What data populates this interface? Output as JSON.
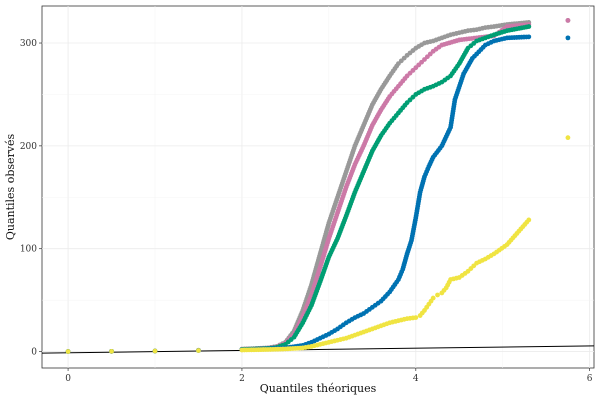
{
  "chart_data": {
    "type": "scatter",
    "title": "",
    "xlabel": "Quantiles théoriques",
    "ylabel": "Quantiles observés",
    "xlim": [
      -0.3,
      6.05
    ],
    "ylim": [
      -16,
      336
    ],
    "xticks": [
      0,
      2,
      4,
      6
    ],
    "yticks": [
      0,
      100,
      200,
      300
    ],
    "grid": true,
    "legend": "none",
    "reference_line": {
      "x": [
        -0.3,
        6.05
      ],
      "y": [
        -1.5,
        5.5
      ],
      "color": "#000000"
    },
    "series": [
      {
        "name": "gris",
        "color": "#999999",
        "points": [
          [
            0,
            0
          ],
          [
            0.5,
            0.2
          ],
          [
            1,
            0.5
          ],
          [
            1.5,
            1.2
          ],
          [
            2,
            2.3
          ],
          [
            2.3,
            3.5
          ],
          [
            2.4,
            5
          ],
          [
            2.5,
            9
          ],
          [
            2.6,
            20
          ],
          [
            2.7,
            40
          ],
          [
            2.8,
            65
          ],
          [
            2.9,
            95
          ],
          [
            3.0,
            125
          ],
          [
            3.1,
            150
          ],
          [
            3.2,
            175
          ],
          [
            3.3,
            200
          ],
          [
            3.4,
            220
          ],
          [
            3.5,
            240
          ],
          [
            3.6,
            255
          ],
          [
            3.7,
            268
          ],
          [
            3.8,
            280
          ],
          [
            3.9,
            288
          ],
          [
            4.0,
            295
          ],
          [
            4.1,
            300
          ],
          [
            4.2,
            302
          ],
          [
            4.3,
            305
          ],
          [
            4.4,
            308
          ],
          [
            4.5,
            310
          ],
          [
            4.6,
            312
          ],
          [
            4.7,
            313
          ],
          [
            4.8,
            315
          ],
          [
            4.9,
            316
          ],
          [
            5.05,
            318
          ],
          [
            5.3,
            320
          ],
          [
            5.75,
            322
          ]
        ]
      },
      {
        "name": "rose",
        "color": "#cc79a7",
        "points": [
          [
            0,
            0
          ],
          [
            0.5,
            0.2
          ],
          [
            1,
            0.5
          ],
          [
            1.5,
            1.2
          ],
          [
            2,
            2.2
          ],
          [
            2.3,
            3.3
          ],
          [
            2.4,
            4.5
          ],
          [
            2.5,
            8
          ],
          [
            2.6,
            17
          ],
          [
            2.7,
            34
          ],
          [
            2.8,
            55
          ],
          [
            2.9,
            82
          ],
          [
            3.0,
            110
          ],
          [
            3.1,
            135
          ],
          [
            3.2,
            160
          ],
          [
            3.3,
            182
          ],
          [
            3.4,
            200
          ],
          [
            3.5,
            220
          ],
          [
            3.6,
            235
          ],
          [
            3.7,
            248
          ],
          [
            3.8,
            258
          ],
          [
            3.9,
            268
          ],
          [
            4.0,
            276
          ],
          [
            4.1,
            284
          ],
          [
            4.2,
            292
          ],
          [
            4.3,
            298
          ],
          [
            4.5,
            303
          ],
          [
            4.7,
            305
          ],
          [
            4.9,
            307
          ],
          [
            5.05,
            316
          ],
          [
            5.3,
            318
          ],
          [
            5.75,
            322
          ]
        ]
      },
      {
        "name": "vert",
        "color": "#009e73",
        "points": [
          [
            0,
            0
          ],
          [
            0.5,
            0.2
          ],
          [
            1,
            0.5
          ],
          [
            1.5,
            1.1
          ],
          [
            2,
            2.1
          ],
          [
            2.3,
            3
          ],
          [
            2.4,
            4
          ],
          [
            2.5,
            7
          ],
          [
            2.6,
            14
          ],
          [
            2.7,
            28
          ],
          [
            2.8,
            45
          ],
          [
            2.9,
            68
          ],
          [
            3.0,
            92
          ],
          [
            3.1,
            110
          ],
          [
            3.2,
            132
          ],
          [
            3.3,
            155
          ],
          [
            3.4,
            175
          ],
          [
            3.5,
            195
          ],
          [
            3.6,
            210
          ],
          [
            3.7,
            222
          ],
          [
            3.8,
            232
          ],
          [
            3.9,
            242
          ],
          [
            4.0,
            250
          ],
          [
            4.1,
            255
          ],
          [
            4.2,
            258
          ],
          [
            4.3,
            262
          ],
          [
            4.4,
            268
          ],
          [
            4.5,
            280
          ],
          [
            4.6,
            295
          ],
          [
            4.7,
            302
          ],
          [
            4.8,
            305
          ],
          [
            4.9,
            308
          ],
          [
            5.05,
            312
          ],
          [
            5.3,
            316
          ]
        ]
      },
      {
        "name": "bleu",
        "color": "#0072b2",
        "points": [
          [
            0,
            0
          ],
          [
            0.5,
            0.2
          ],
          [
            1,
            0.5
          ],
          [
            1.5,
            1
          ],
          [
            2,
            1.8
          ],
          [
            2.3,
            2.5
          ],
          [
            2.5,
            3.5
          ],
          [
            2.7,
            6
          ],
          [
            2.8,
            9
          ],
          [
            2.9,
            13
          ],
          [
            3.0,
            17
          ],
          [
            3.1,
            22
          ],
          [
            3.2,
            28
          ],
          [
            3.3,
            33
          ],
          [
            3.4,
            37
          ],
          [
            3.5,
            43
          ],
          [
            3.6,
            49
          ],
          [
            3.7,
            58
          ],
          [
            3.8,
            70
          ],
          [
            3.85,
            80
          ],
          [
            3.9,
            95
          ],
          [
            3.95,
            108
          ],
          [
            4.0,
            130
          ],
          [
            4.05,
            155
          ],
          [
            4.1,
            170
          ],
          [
            4.15,
            180
          ],
          [
            4.2,
            189
          ],
          [
            4.3,
            200
          ],
          [
            4.4,
            218
          ],
          [
            4.45,
            245
          ],
          [
            4.55,
            270
          ],
          [
            4.65,
            285
          ],
          [
            4.8,
            298
          ],
          [
            4.9,
            302
          ],
          [
            5.05,
            305
          ],
          [
            5.3,
            306
          ],
          [
            5.75,
            305
          ]
        ]
      },
      {
        "name": "jaune",
        "color": "#f0e442",
        "points": [
          [
            0,
            0
          ],
          [
            0.5,
            0.2
          ],
          [
            1,
            0.5
          ],
          [
            1.5,
            1
          ],
          [
            2,
            1.5
          ],
          [
            2.3,
            2
          ],
          [
            2.5,
            2.5
          ],
          [
            2.7,
            3.5
          ],
          [
            2.8,
            5
          ],
          [
            2.9,
            7
          ],
          [
            3.0,
            9
          ],
          [
            3.1,
            11
          ],
          [
            3.2,
            13
          ],
          [
            3.3,
            16
          ],
          [
            3.4,
            19
          ],
          [
            3.5,
            22
          ],
          [
            3.6,
            25
          ],
          [
            3.7,
            28
          ],
          [
            3.8,
            30
          ],
          [
            3.9,
            32
          ],
          [
            4.0,
            33
          ],
          [
            4.05,
            35
          ],
          [
            4.1,
            40
          ],
          [
            4.15,
            46
          ],
          [
            4.2,
            52
          ],
          [
            4.25,
            55
          ],
          [
            4.3,
            57
          ],
          [
            4.35,
            62
          ],
          [
            4.4,
            70
          ],
          [
            4.5,
            72
          ],
          [
            4.6,
            78
          ],
          [
            4.7,
            86
          ],
          [
            4.8,
            90
          ],
          [
            4.9,
            95
          ],
          [
            5.05,
            104
          ],
          [
            5.3,
            128
          ],
          [
            5.75,
            208
          ]
        ]
      }
    ]
  }
}
